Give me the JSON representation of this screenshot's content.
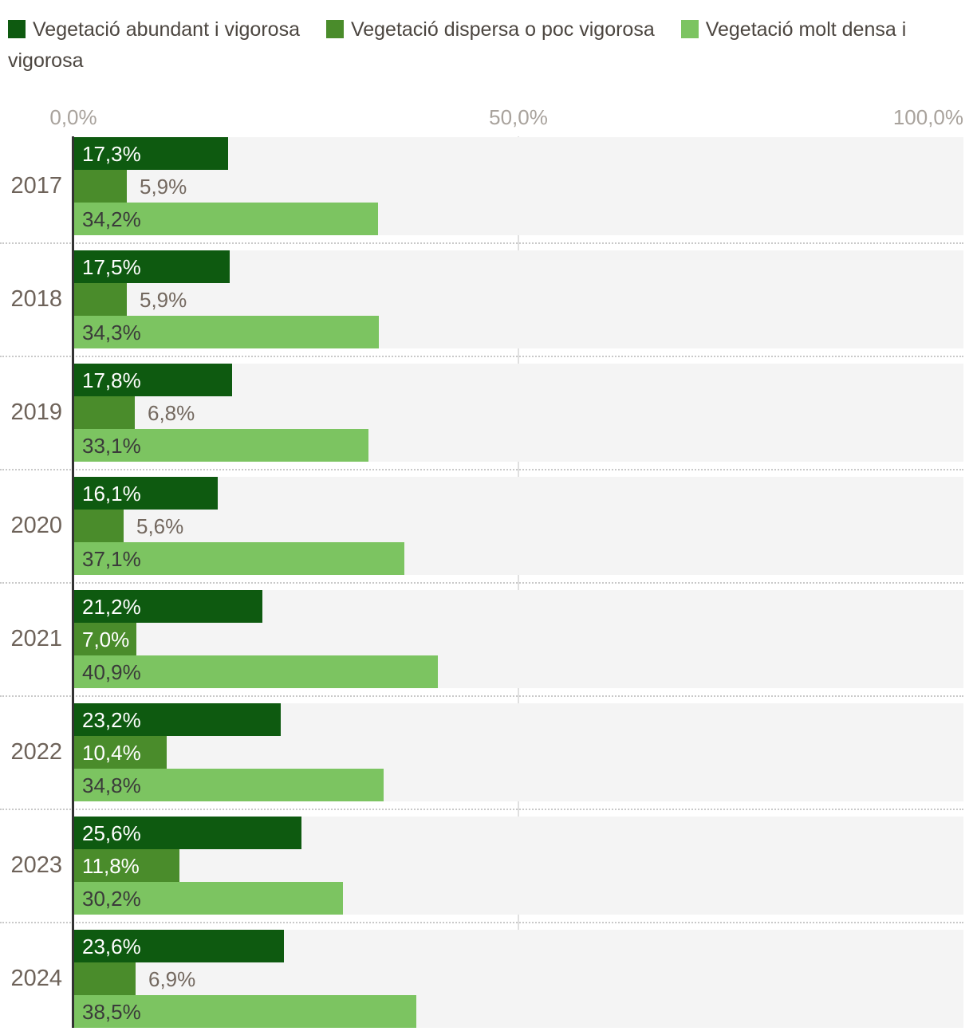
{
  "legend": {
    "items": [
      {
        "label": "Vegetació abundant i vigorosa",
        "color": "#0e5a10"
      },
      {
        "label": "Vegetació dispersa o poc vigorosa",
        "color": "#4a8c2b"
      },
      {
        "label": "Vegetació molt densa i vigorosa",
        "color": "#7cc461"
      }
    ]
  },
  "chart_data": {
    "type": "bar",
    "orientation": "horizontal",
    "title": "",
    "xlabel": "",
    "ylabel": "",
    "xlim": [
      0,
      100
    ],
    "x_ticks": [
      "0,0%",
      "50,0%",
      "100,0%"
    ],
    "grid": "vertical, line at 0% (dark) and 50% (light)",
    "legend_position": "top",
    "categories": [
      "2017",
      "2018",
      "2019",
      "2020",
      "2021",
      "2022",
      "2023",
      "2024"
    ],
    "series": [
      {
        "name": "Vegetació abundant i vigorosa",
        "color": "#0e5a10",
        "values": [
          17.3,
          17.5,
          17.8,
          16.1,
          21.2,
          23.2,
          25.6,
          23.6
        ],
        "labels": [
          "17,3%",
          "17,5%",
          "17,8%",
          "16,1%",
          "21,2%",
          "23,2%",
          "25,6%",
          "23,6%"
        ]
      },
      {
        "name": "Vegetació dispersa o poc vigorosa",
        "color": "#4a8c2b",
        "values": [
          5.9,
          5.9,
          6.8,
          5.6,
          7.0,
          10.4,
          11.8,
          6.9
        ],
        "labels": [
          "5,9%",
          "5,9%",
          "6,8%",
          "5,6%",
          "7,0%",
          "10,4%",
          "11,8%",
          "6,9%"
        ]
      },
      {
        "name": "Vegetació molt densa i vigorosa",
        "color": "#7cc461",
        "values": [
          34.2,
          34.3,
          33.1,
          37.1,
          40.9,
          34.8,
          30.2,
          38.5
        ],
        "labels": [
          "34,2%",
          "34,3%",
          "33,1%",
          "37,1%",
          "40,9%",
          "34,8%",
          "30,2%",
          "38,5%"
        ]
      }
    ],
    "colors": {
      "plot_background": "#f4f4f4",
      "gridline": "#e0e0e0",
      "axis_line": "#333333",
      "separator": "#c9c9c9",
      "tick_label": "#a8a29c",
      "year_label": "#6e635a",
      "label_inside_dark_bars": "#ffffff",
      "label_inside_light_bar": "#3a3a3a",
      "label_outside": "#73685f"
    }
  }
}
